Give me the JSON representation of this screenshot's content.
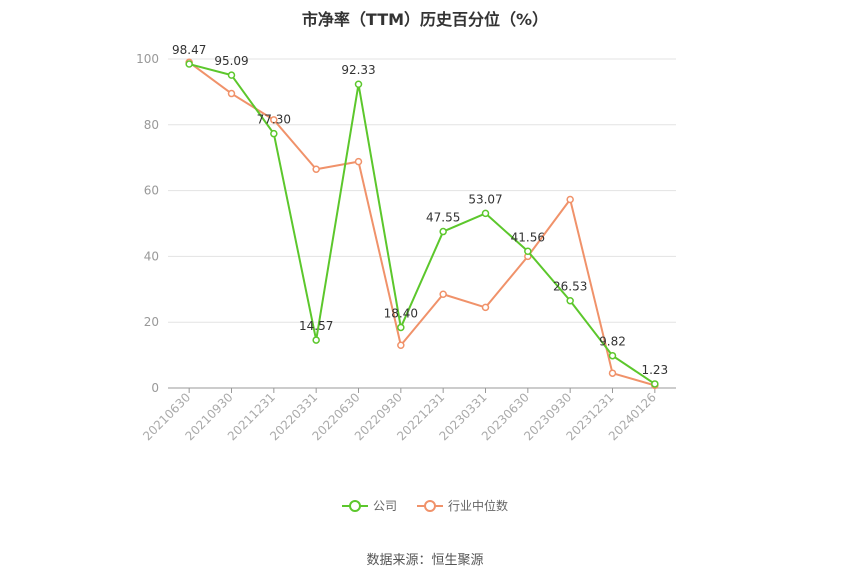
{
  "chart_data": {
    "type": "line",
    "title": "市净率（TTM）历史百分位（%）",
    "categories": [
      "20210630",
      "20210930",
      "20211231",
      "20220331",
      "20220630",
      "20220930",
      "20221231",
      "20230331",
      "20230630",
      "20230930",
      "20231231",
      "20240126"
    ],
    "ylim": [
      0,
      100
    ],
    "yticks": [
      0,
      20,
      40,
      60,
      80,
      100
    ],
    "grid": true,
    "legend_position": "bottom",
    "series": [
      {
        "name": "公司",
        "color": "#5cc72c",
        "show_labels": true,
        "values": [
          98.47,
          95.09,
          77.3,
          14.57,
          92.33,
          18.4,
          47.55,
          53.07,
          41.56,
          26.53,
          9.82,
          1.23
        ],
        "labels": [
          "98.47",
          "95.09",
          "77.30",
          "14.57",
          "92.33",
          "18.40",
          "47.55",
          "53.07",
          "41.56",
          "26.53",
          "9.82",
          "1.23"
        ]
      },
      {
        "name": "行业中位数",
        "color": "#f0926a",
        "show_labels": false,
        "values": [
          99.0,
          89.5,
          81.5,
          66.5,
          68.8,
          13.0,
          28.5,
          24.5,
          40.0,
          57.3,
          4.5,
          0.8
        ]
      }
    ]
  },
  "legend": {
    "company": "公司",
    "industry": "行业中位数"
  },
  "source": "数据来源：恒生聚源"
}
